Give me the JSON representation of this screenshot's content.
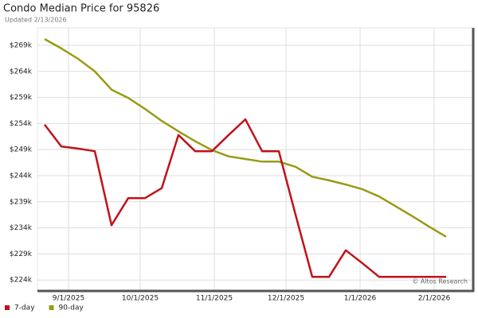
{
  "chart_data": {
    "type": "line",
    "title": "Condo Median Price for 95826",
    "subtitle": "Updated 2/13/2026",
    "watermark": "© Altos Research",
    "x": [
      "2025-08-22",
      "2025-08-29",
      "2025-09-05",
      "2025-09-12",
      "2025-09-19",
      "2025-09-26",
      "2025-10-03",
      "2025-10-10",
      "2025-10-17",
      "2025-10-24",
      "2025-10-31",
      "2025-11-07",
      "2025-11-14",
      "2025-11-21",
      "2025-11-28",
      "2025-12-05",
      "2025-12-12",
      "2025-12-19",
      "2025-12-26",
      "2026-01-02",
      "2026-01-09",
      "2026-01-16",
      "2026-01-23",
      "2026-01-30",
      "2026-02-06"
    ],
    "series": [
      {
        "name": "7-day",
        "color": "#c0121b",
        "values": [
          253800,
          249600,
          249200,
          248700,
          234500,
          239700,
          239700,
          241600,
          251800,
          248700,
          248700,
          251800,
          254800,
          248700,
          248700,
          236500,
          224600,
          224600,
          229700,
          227200,
          224600,
          224600,
          224600,
          224600,
          224600
        ]
      },
      {
        "name": "90-day",
        "color": "#9a9a14",
        "values": [
          270200,
          268400,
          266400,
          264000,
          260500,
          258900,
          256800,
          254500,
          252500,
          250600,
          248900,
          247700,
          247200,
          246700,
          246700,
          245700,
          243800,
          243100,
          242300,
          241400,
          240000,
          238100,
          236200,
          234200,
          232300
        ]
      }
    ],
    "xlim": [
      "2025-08-19",
      "2026-02-17"
    ],
    "xticks": [
      {
        "value": "2025-09-01",
        "label": "9/1/2025"
      },
      {
        "value": "2025-10-01",
        "label": "10/1/2025"
      },
      {
        "value": "2025-11-01",
        "label": "11/1/2025"
      },
      {
        "value": "2025-12-01",
        "label": "12/1/2025"
      },
      {
        "value": "2026-01-01",
        "label": "1/1/2026"
      },
      {
        "value": "2026-02-01",
        "label": "2/1/2026"
      }
    ],
    "ylim": [
      222050,
      272350
    ],
    "yticks": [
      {
        "value": 224000,
        "label": "$224k"
      },
      {
        "value": 229000,
        "label": "$229k"
      },
      {
        "value": 234000,
        "label": "$234k"
      },
      {
        "value": 239000,
        "label": "$239k"
      },
      {
        "value": 244000,
        "label": "$244k"
      },
      {
        "value": 249000,
        "label": "$249k"
      },
      {
        "value": 254000,
        "label": "$254k"
      },
      {
        "value": 259000,
        "label": "$259k"
      },
      {
        "value": 264000,
        "label": "$264k"
      },
      {
        "value": 269000,
        "label": "$269k"
      }
    ],
    "grid": true,
    "legend": "bottom-left"
  }
}
